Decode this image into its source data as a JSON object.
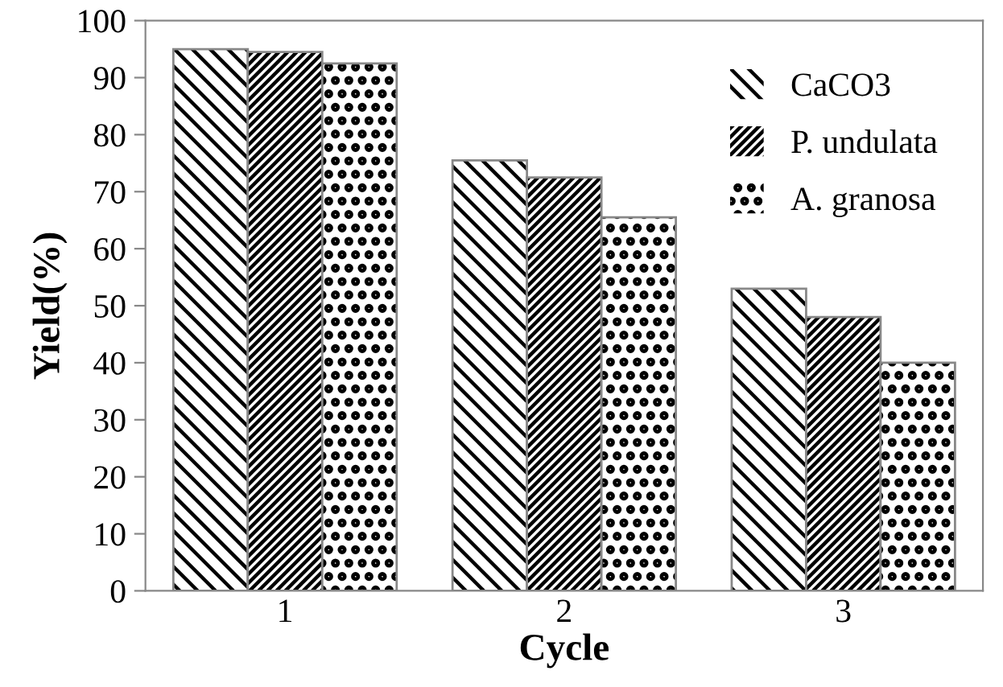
{
  "chart_data": {
    "type": "bar",
    "xlabel": "Cycle",
    "ylabel": "Yield(%)",
    "categories": [
      "1",
      "2",
      "3"
    ],
    "series": [
      {
        "name": "CaCO3",
        "color": "#000000",
        "values": [
          95,
          75.5,
          53
        ]
      },
      {
        "name": "P. undulata",
        "color": "#000000",
        "values": [
          94.5,
          72.5,
          48
        ]
      },
      {
        "name": "A. granosa",
        "color": "#000000",
        "values": [
          92.5,
          65.5,
          40
        ]
      }
    ],
    "ylim": [
      0,
      100
    ],
    "yticks": [
      0,
      10,
      20,
      30,
      40,
      50,
      60,
      70,
      80,
      90,
      100
    ],
    "legend": "top right",
    "grid": false
  }
}
